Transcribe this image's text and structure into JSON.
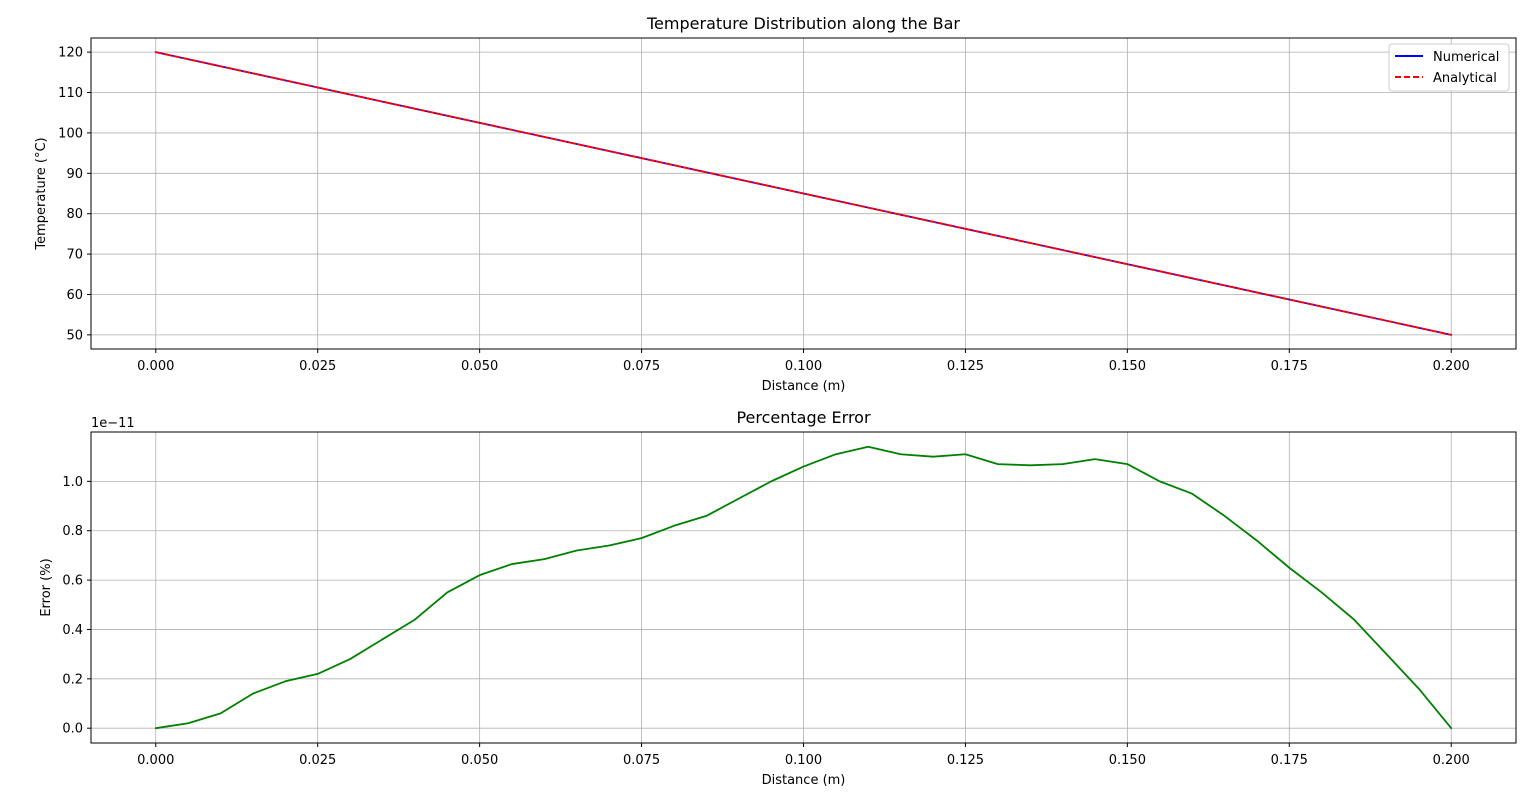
{
  "charts": [
    {
      "type": "line",
      "title": "Temperature Distribution along the Bar",
      "xlabel": "Distance (m)",
      "ylabel": "Temperature (°C)",
      "xlim": [
        -0.01,
        0.21
      ],
      "ylim": [
        46.5,
        123.5
      ],
      "xticks": [
        0.0,
        0.025,
        0.05,
        0.075,
        0.1,
        0.125,
        0.15,
        0.175,
        0.2
      ],
      "xtick_labels": [
        "0.000",
        "0.025",
        "0.050",
        "0.075",
        "0.100",
        "0.125",
        "0.150",
        "0.175",
        "0.200"
      ],
      "yticks": [
        50,
        60,
        70,
        80,
        90,
        100,
        110,
        120
      ],
      "ytick_labels": [
        "50",
        "60",
        "70",
        "80",
        "90",
        "100",
        "110",
        "120"
      ],
      "grid": true,
      "legend_position": "top-right",
      "series": [
        {
          "name": "Numerical",
          "color": "#0000ff",
          "style": "solid",
          "x": [
            0.0,
            0.2
          ],
          "y": [
            120,
            50
          ]
        },
        {
          "name": "Analytical",
          "color": "#ff0000",
          "style": "dashed",
          "x": [
            0.0,
            0.2
          ],
          "y": [
            120,
            50
          ]
        }
      ]
    },
    {
      "type": "line",
      "title": "Percentage Error",
      "xlabel": "Distance (m)",
      "ylabel": "Error (%)",
      "offset_text": "1e−11",
      "xlim": [
        -0.01,
        0.21
      ],
      "ylim": [
        -0.06,
        1.2
      ],
      "xticks": [
        0.0,
        0.025,
        0.05,
        0.075,
        0.1,
        0.125,
        0.15,
        0.175,
        0.2
      ],
      "xtick_labels": [
        "0.000",
        "0.025",
        "0.050",
        "0.075",
        "0.100",
        "0.125",
        "0.150",
        "0.175",
        "0.200"
      ],
      "yticks": [
        0.0,
        0.2,
        0.4,
        0.6,
        0.8,
        1.0
      ],
      "ytick_labels": [
        "0.0",
        "0.2",
        "0.4",
        "0.6",
        "0.8",
        "1.0"
      ],
      "grid": true,
      "series": [
        {
          "color": "#008000",
          "style": "solid",
          "x": [
            0.0,
            0.005,
            0.01,
            0.015,
            0.02,
            0.025,
            0.03,
            0.035,
            0.04,
            0.045,
            0.05,
            0.055,
            0.06,
            0.065,
            0.07,
            0.075,
            0.08,
            0.085,
            0.09,
            0.095,
            0.1,
            0.105,
            0.11,
            0.115,
            0.12,
            0.125,
            0.13,
            0.135,
            0.14,
            0.145,
            0.15,
            0.155,
            0.16,
            0.165,
            0.17,
            0.175,
            0.18,
            0.185,
            0.19,
            0.195,
            0.2
          ],
          "y": [
            0.0,
            0.02,
            0.06,
            0.14,
            0.19,
            0.22,
            0.28,
            0.36,
            0.44,
            0.55,
            0.62,
            0.665,
            0.685,
            0.72,
            0.74,
            0.77,
            0.82,
            0.86,
            0.93,
            1.0,
            1.06,
            1.11,
            1.14,
            1.11,
            1.1,
            1.11,
            1.07,
            1.065,
            1.07,
            1.09,
            1.07,
            1.0,
            0.95,
            0.86,
            0.76,
            0.65,
            0.55,
            0.44,
            0.3,
            0.16,
            0.0
          ]
        }
      ]
    }
  ]
}
